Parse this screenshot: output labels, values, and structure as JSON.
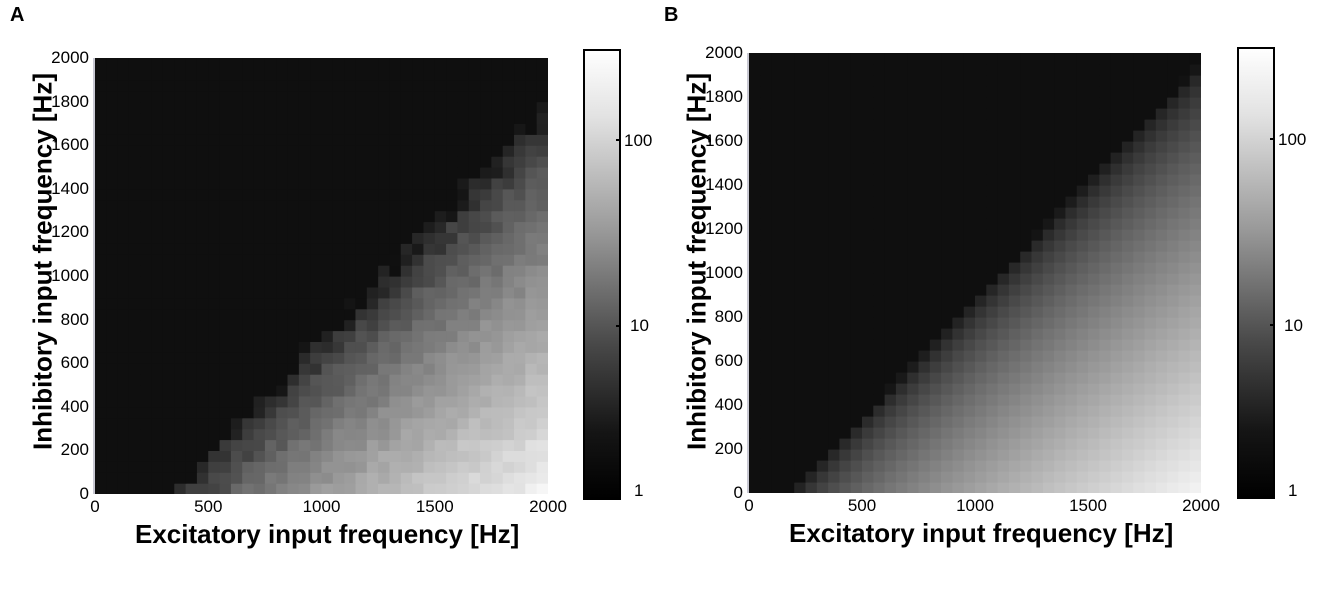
{
  "panels": [
    {
      "letter": "A",
      "xlabel": "Excitatory input frequency [Hz]",
      "ylabel": "Inhibitory input frequency [Hz]",
      "colorbar_ticks": [
        "100",
        "10",
        "1"
      ]
    },
    {
      "letter": "B",
      "xlabel": "Excitatory input frequency [Hz]",
      "ylabel": "Inhibitory input frequency [Hz]",
      "colorbar_ticks": [
        "100",
        "10",
        "1"
      ]
    }
  ],
  "chart_data": [
    {
      "type": "heatmap",
      "title": "",
      "xlabel": "Excitatory input frequency [Hz]",
      "ylabel": "Inhibitory input frequency [Hz]",
      "xlim": [
        0,
        2000
      ],
      "ylim": [
        0,
        2000
      ],
      "x_ticks": [
        0,
        500,
        1000,
        1500,
        2000
      ],
      "y_ticks": [
        0,
        200,
        400,
        600,
        800,
        1000,
        1200,
        1400,
        1600,
        1800,
        2000
      ],
      "grid_cells": [
        40,
        40
      ],
      "colorscale": "grayscale-log",
      "colorbar_range": [
        1,
        300
      ],
      "colorbar_ticks": [
        1,
        10,
        100
      ],
      "zero_boundary": "noisy diagonal from (~350, 0) to (~2000, ~1900)",
      "max_value_location": "bottom-right (E=2000, I=0), ~200",
      "noisy": true
    },
    {
      "type": "heatmap",
      "title": "",
      "xlabel": "Excitatory input frequency [Hz]",
      "ylabel": "Inhibitory input frequency [Hz]",
      "xlim": [
        0,
        2000
      ],
      "ylim": [
        0,
        2000
      ],
      "x_ticks": [
        0,
        500,
        1000,
        1500,
        2000
      ],
      "y_ticks": [
        0,
        200,
        400,
        600,
        800,
        1000,
        1200,
        1400,
        1600,
        1800,
        2000
      ],
      "grid_cells": [
        40,
        40
      ],
      "colorscale": "grayscale-log",
      "colorbar_range": [
        1,
        300
      ],
      "colorbar_ticks": [
        1,
        10,
        100
      ],
      "zero_boundary": "smooth diagonal from (~200, 0) to (~2000, ~1900)",
      "max_value_location": "bottom-right (E=2000, I=0), ~250",
      "noisy": false
    }
  ]
}
